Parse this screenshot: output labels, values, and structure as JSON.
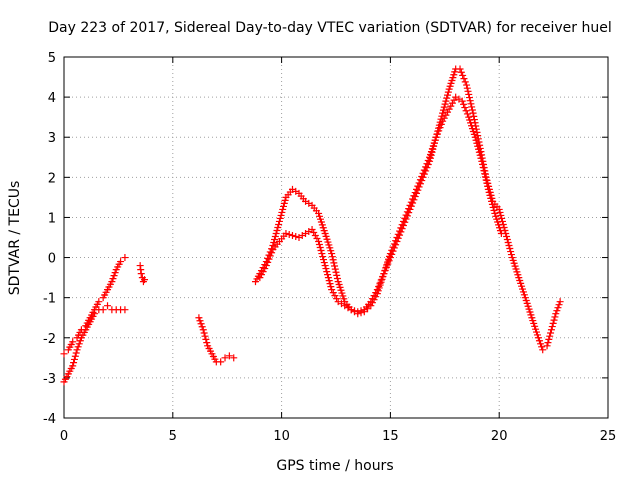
{
  "chart_data": {
    "type": "scatter",
    "title": "Day 223 of 2017, Sidereal Day-to-day VTEC variation (SDTVAR) for receiver huel",
    "xlabel": "GPS time / hours",
    "ylabel": "SDTVAR / TECUs",
    "xlim": [
      0,
      25
    ],
    "ylim": [
      -4,
      5
    ],
    "xticks": [
      "0",
      "5",
      "10",
      "15",
      "20",
      "25"
    ],
    "yticks": [
      "-4",
      "-3",
      "-2",
      "-1",
      "0",
      "1",
      "2",
      "3",
      "4",
      "5"
    ],
    "grid": true,
    "marker": "+",
    "color": "#ff0000",
    "series": [
      {
        "name": "segment-1-lower",
        "x": [
          0.0,
          0.2,
          0.4,
          0.6,
          0.8,
          1.0,
          1.2,
          1.4,
          1.6,
          1.8,
          2.0,
          2.2,
          2.4,
          2.6,
          2.8
        ],
        "y": [
          -3.1,
          -2.9,
          -2.7,
          -2.3,
          -2.0,
          -1.8,
          -1.6,
          -1.4,
          -1.3,
          -1.3,
          -1.2,
          -1.3,
          -1.3,
          -1.3,
          -1.3
        ]
      },
      {
        "name": "segment-1-upper",
        "x": [
          0.0,
          0.2,
          0.4,
          0.6,
          0.8,
          1.0,
          1.2,
          1.4,
          1.6,
          1.8,
          2.0,
          2.2,
          2.4,
          2.6,
          2.8
        ],
        "y": [
          -2.4,
          -2.3,
          -2.1,
          -2.0,
          -1.8,
          -1.7,
          -1.5,
          -1.3,
          -1.1,
          -1.0,
          -0.8,
          -0.6,
          -0.3,
          -0.1,
          0.0
        ]
      },
      {
        "name": "segment-2",
        "x": [
          3.5,
          3.55,
          3.6,
          3.65,
          3.7
        ],
        "y": [
          -0.2,
          -0.4,
          -0.5,
          -0.6,
          -0.55
        ]
      },
      {
        "name": "segment-3",
        "x": [
          6.2,
          6.4,
          6.6,
          6.8,
          7.0,
          7.2,
          7.4,
          7.6,
          7.8
        ],
        "y": [
          -1.5,
          -1.8,
          -2.2,
          -2.4,
          -2.6,
          -2.6,
          -2.5,
          -2.45,
          -2.5
        ]
      },
      {
        "name": "segment-4-upper",
        "x": [
          8.8,
          9.0,
          9.3,
          9.6,
          9.9,
          10.2,
          10.5,
          10.8,
          11.1,
          11.4,
          11.7,
          12.0,
          12.3,
          12.6,
          12.9,
          13.2,
          13.5,
          13.8,
          14.1,
          14.4,
          14.7,
          15.0,
          15.3,
          15.6,
          15.9,
          16.2,
          16.5,
          16.8,
          17.1,
          17.4,
          17.7,
          18.0,
          18.2,
          18.5,
          18.8,
          19.1,
          19.4,
          19.7,
          20.0,
          20.3,
          20.6,
          20.9,
          21.2,
          21.5,
          21.8,
          22.0,
          22.2,
          22.4,
          22.6,
          22.8
        ],
        "y": [
          -0.6,
          -0.4,
          -0.1,
          0.3,
          0.9,
          1.5,
          1.7,
          1.6,
          1.4,
          1.3,
          1.1,
          0.6,
          0.1,
          -0.6,
          -1.1,
          -1.3,
          -1.4,
          -1.35,
          -1.2,
          -0.9,
          -0.4,
          0.0,
          0.4,
          0.8,
          1.2,
          1.6,
          2.0,
          2.4,
          3.0,
          3.6,
          4.2,
          4.7,
          4.7,
          4.3,
          3.6,
          2.8,
          2.0,
          1.4,
          1.2,
          0.6,
          0.0,
          -0.5,
          -1.0,
          -1.5,
          -2.0,
          -2.3,
          -2.2,
          -1.8,
          -1.4,
          -1.1
        ]
      },
      {
        "name": "segment-4-lower",
        "x": [
          9.0,
          9.3,
          9.6,
          9.9,
          10.2,
          10.5,
          10.8,
          11.1,
          11.4,
          11.7,
          12.0,
          12.3,
          12.6,
          12.9,
          13.2,
          13.5,
          13.8,
          14.1,
          14.4,
          14.7,
          15.0,
          15.3,
          15.6,
          15.9,
          16.2,
          16.5,
          16.8,
          17.1,
          17.4,
          17.7,
          18.0,
          18.3,
          18.6,
          18.9,
          19.2,
          19.5,
          19.8,
          20.1
        ],
        "y": [
          -0.5,
          -0.2,
          0.2,
          0.4,
          0.6,
          0.55,
          0.5,
          0.6,
          0.7,
          0.4,
          -0.2,
          -0.8,
          -1.1,
          -1.2,
          -1.3,
          -1.35,
          -1.3,
          -1.1,
          -0.8,
          -0.4,
          0.1,
          0.5,
          0.9,
          1.3,
          1.7,
          2.1,
          2.5,
          3.0,
          3.4,
          3.7,
          4.0,
          3.9,
          3.5,
          3.0,
          2.4,
          1.7,
          1.1,
          0.6
        ]
      }
    ]
  }
}
